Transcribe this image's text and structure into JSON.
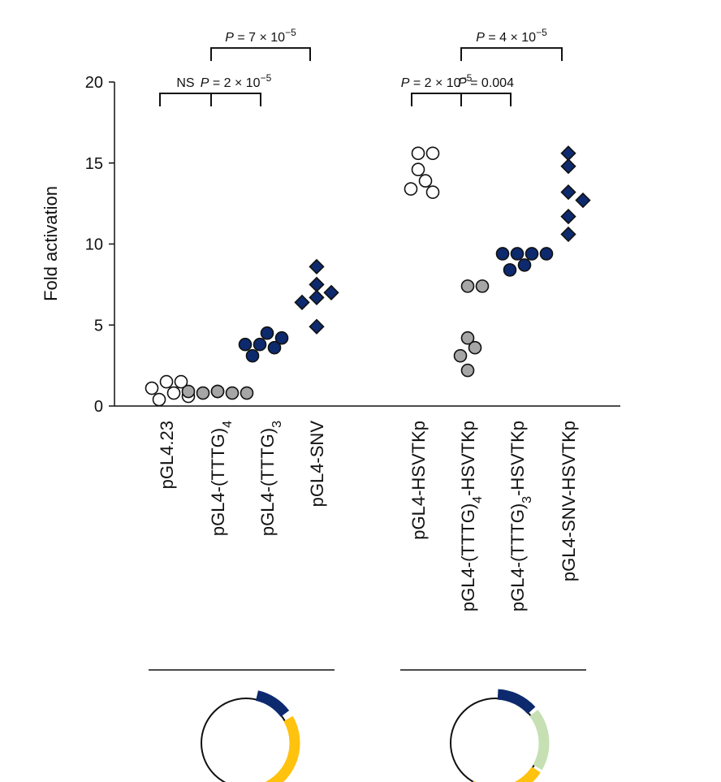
{
  "chart_data": {
    "type": "scatter",
    "ylabel": "Fold activation",
    "ylim": [
      0,
      20
    ],
    "yticks": [
      "0",
      "5",
      "10",
      "15",
      "20"
    ],
    "groups": [
      {
        "category": "pGL4.23",
        "label_parts": [
          {
            "t": "pGL4.23"
          }
        ],
        "marker": "circle",
        "color": "#ffffff",
        "values": [
          1.5,
          1.5,
          1.1,
          0.8,
          0.6,
          0.4
        ]
      },
      {
        "category": "pGL4-(TTTG)4",
        "label_parts": [
          {
            "t": "pGL4-(TTTG)"
          },
          {
            "t": "4",
            "sub": true
          }
        ],
        "marker": "circle",
        "color": "#a6a6a6",
        "values": [
          0.9,
          0.8,
          0.8,
          0.8,
          0.9,
          0.9
        ]
      },
      {
        "category": "pGL4-(TTTG)3",
        "label_parts": [
          {
            "t": "pGL4-(TTTG)"
          },
          {
            "t": "3",
            "sub": true
          }
        ],
        "marker": "circle",
        "color": "#0d2a6e",
        "values": [
          4.5,
          4.2,
          3.8,
          3.8,
          3.6,
          3.1
        ]
      },
      {
        "category": "pGL4-SNV",
        "label_parts": [
          {
            "t": "pGL4-SNV"
          }
        ],
        "marker": "diamond",
        "color": "#0d2a6e",
        "values": [
          8.6,
          7.5,
          7.0,
          6.7,
          6.4,
          4.9
        ]
      },
      {
        "category": "pGL4-HSVTKp",
        "label_parts": [
          {
            "t": "pGL4-HSVTKp"
          }
        ],
        "marker": "circle",
        "color": "#ffffff",
        "values": [
          15.6,
          15.6,
          14.6,
          13.9,
          13.4,
          13.2
        ]
      },
      {
        "category": "pGL4-(TTTG)4-HSVTKp",
        "label_parts": [
          {
            "t": "pGL4-(TTTG)"
          },
          {
            "t": "4",
            "sub": true
          },
          {
            "t": "-HSVTKp"
          }
        ],
        "marker": "circle",
        "color": "#a6a6a6",
        "values": [
          7.4,
          7.4,
          4.2,
          3.6,
          3.1,
          2.2
        ]
      },
      {
        "category": "pGL4-(TTTG)3-HSVTKp",
        "label_parts": [
          {
            "t": "pGL4-(TTTG)"
          },
          {
            "t": "3",
            "sub": true
          },
          {
            "t": "-HSVTKp"
          }
        ],
        "marker": "circle",
        "color": "#0d2a6e",
        "values": [
          9.4,
          9.4,
          9.4,
          9.4,
          8.7,
          8.4
        ]
      },
      {
        "category": "pGL4-SNV-HSVTKp",
        "label_parts": [
          {
            "t": "pGL4-SNV-HSVTKp"
          }
        ],
        "marker": "diamond",
        "color": "#0d2a6e",
        "values": [
          15.6,
          14.8,
          13.2,
          12.7,
          11.7,
          10.6
        ]
      }
    ],
    "comparisons": [
      {
        "from": 0,
        "to": 1,
        "y": 19.3,
        "label_parts": [
          {
            "t": "NS"
          }
        ]
      },
      {
        "from": 1,
        "to": 2,
        "y": 19.3,
        "label_parts": [
          {
            "t": "P",
            "i": true
          },
          {
            "t": " = 2 × 10"
          },
          {
            "t": "−5",
            "sup": true
          }
        ]
      },
      {
        "from": 1,
        "to": 3,
        "y": 22.1,
        "label_parts": [
          {
            "t": "P",
            "i": true
          },
          {
            "t": " = 7 × 10"
          },
          {
            "t": "−5",
            "sup": true
          }
        ]
      },
      {
        "from": 4,
        "to": 5,
        "y": 19.3,
        "label_parts": [
          {
            "t": "P",
            "i": true
          },
          {
            "t": " = 2 × 10"
          },
          {
            "t": "−5",
            "sup": true
          }
        ]
      },
      {
        "from": 5,
        "to": 6,
        "y": 19.3,
        "label_parts": [
          {
            "t": "P",
            "i": true
          },
          {
            "t": " = 0.004"
          }
        ]
      },
      {
        "from": 5,
        "to": 7,
        "y": 22.1,
        "label_parts": [
          {
            "t": "P",
            "i": true
          },
          {
            "t": " = 4 × 10"
          },
          {
            "t": "−5",
            "sup": true
          }
        ]
      }
    ],
    "constructs": [
      {
        "groups": [
          0,
          3
        ],
        "segments": [
          {
            "color": "#0d2a6e"
          },
          {
            "color": "#ffc20e"
          }
        ]
      },
      {
        "groups": [
          4,
          7
        ],
        "segments": [
          {
            "color": "#0d2a6e"
          },
          {
            "color": "#c6e0b4"
          },
          {
            "color": "#ffc20e"
          }
        ]
      }
    ]
  }
}
